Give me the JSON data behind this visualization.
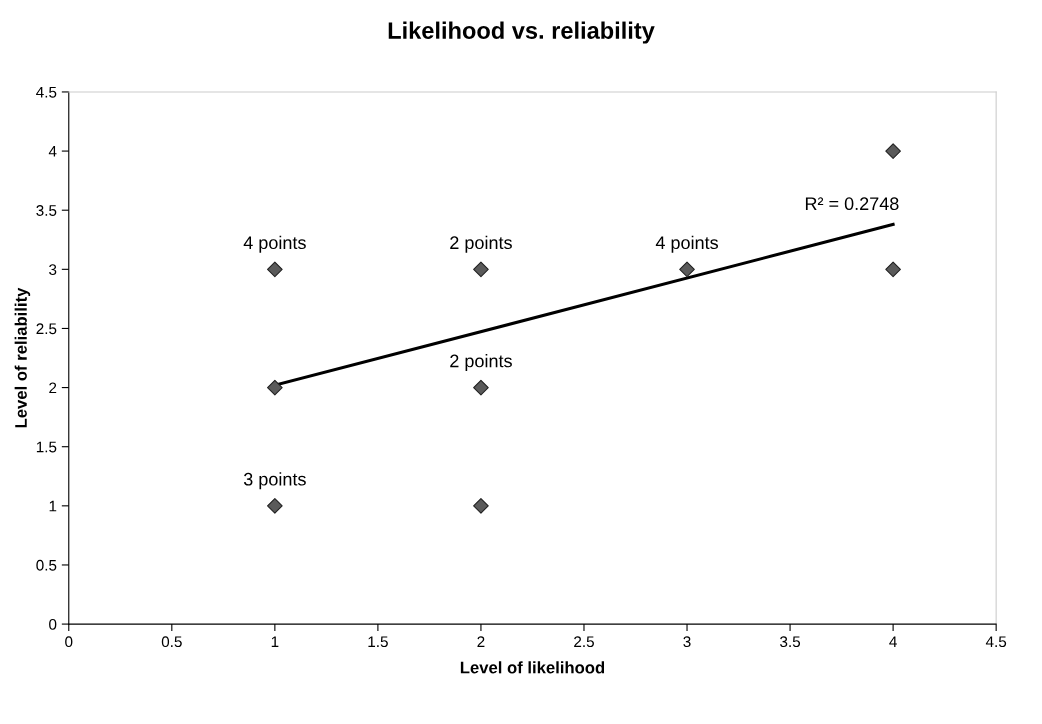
{
  "chart_data": {
    "type": "scatter",
    "title": "Likelihood vs. reliability",
    "xlabel": "Level of likelihood",
    "ylabel": "Level of reliability",
    "series": [
      {
        "color": "#5a5a5a",
        "marker": "diamond",
        "x": [
          1,
          1,
          1,
          2,
          2,
          2,
          3,
          4,
          4
        ],
        "values": [
          3,
          2,
          1,
          3,
          2,
          1,
          3,
          4,
          3
        ]
      },
      {
        "type": "line",
        "color": "#000000",
        "marker": "none",
        "x": [
          1,
          4
        ],
        "values": [
          2.02,
          3.38
        ]
      }
    ],
    "annotations": [
      {
        "text": "4 points",
        "x": 1,
        "y": 3
      },
      {
        "text": "2 points",
        "x": 2,
        "y": 3
      },
      {
        "text": "4 points",
        "x": 3,
        "y": 3
      },
      {
        "text": "2 points",
        "x": 2,
        "y": 2
      },
      {
        "text": "3 points",
        "x": 1,
        "y": 1
      },
      {
        "text": "R² = 0.2748",
        "x": 3.8,
        "y": 3.33
      }
    ],
    "xlim": [
      0,
      4.5
    ],
    "xticks": [
      0,
      0.5,
      1,
      1.5,
      2,
      2.5,
      3,
      3.5,
      4,
      4.5
    ],
    "ylim": [
      0,
      4.5
    ],
    "yticks": [
      0,
      0.5,
      1,
      1.5,
      2,
      2.5,
      3,
      3.5,
      4,
      4.5
    ],
    "grid": false,
    "legend": false
  }
}
